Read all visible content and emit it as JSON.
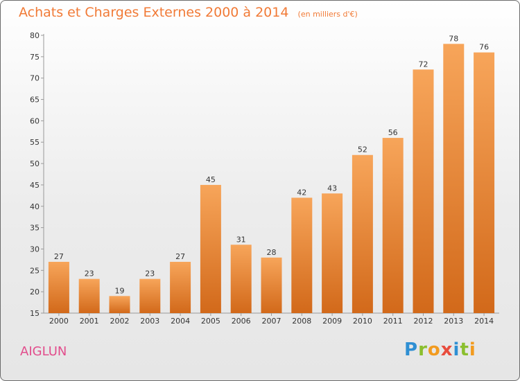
{
  "header": {
    "title": "Achats et Charges Externes 2000 à 2014",
    "unit": "(en milliers d'€)"
  },
  "commune": "AIGLUN",
  "logo": "Proxiti",
  "colors": {
    "bar_top": "#f7a55a",
    "bar_bottom": "#d2691a",
    "title": "#f17a36",
    "commune": "#e24d8c"
  },
  "chart_data": {
    "type": "bar",
    "categories": [
      "2000",
      "2001",
      "2002",
      "2003",
      "2004",
      "2005",
      "2006",
      "2007",
      "2008",
      "2009",
      "2010",
      "2011",
      "2012",
      "2013",
      "2014"
    ],
    "values": [
      27,
      23,
      19,
      23,
      27,
      45,
      31,
      28,
      42,
      43,
      52,
      56,
      72,
      78,
      76
    ],
    "title": "Achats et Charges Externes 2000 à 2014",
    "ylim": [
      15,
      80
    ],
    "yticks": [
      15,
      20,
      25,
      30,
      35,
      40,
      45,
      50,
      55,
      60,
      65,
      70,
      75,
      80
    ],
    "grid": false,
    "data_labels": true
  }
}
